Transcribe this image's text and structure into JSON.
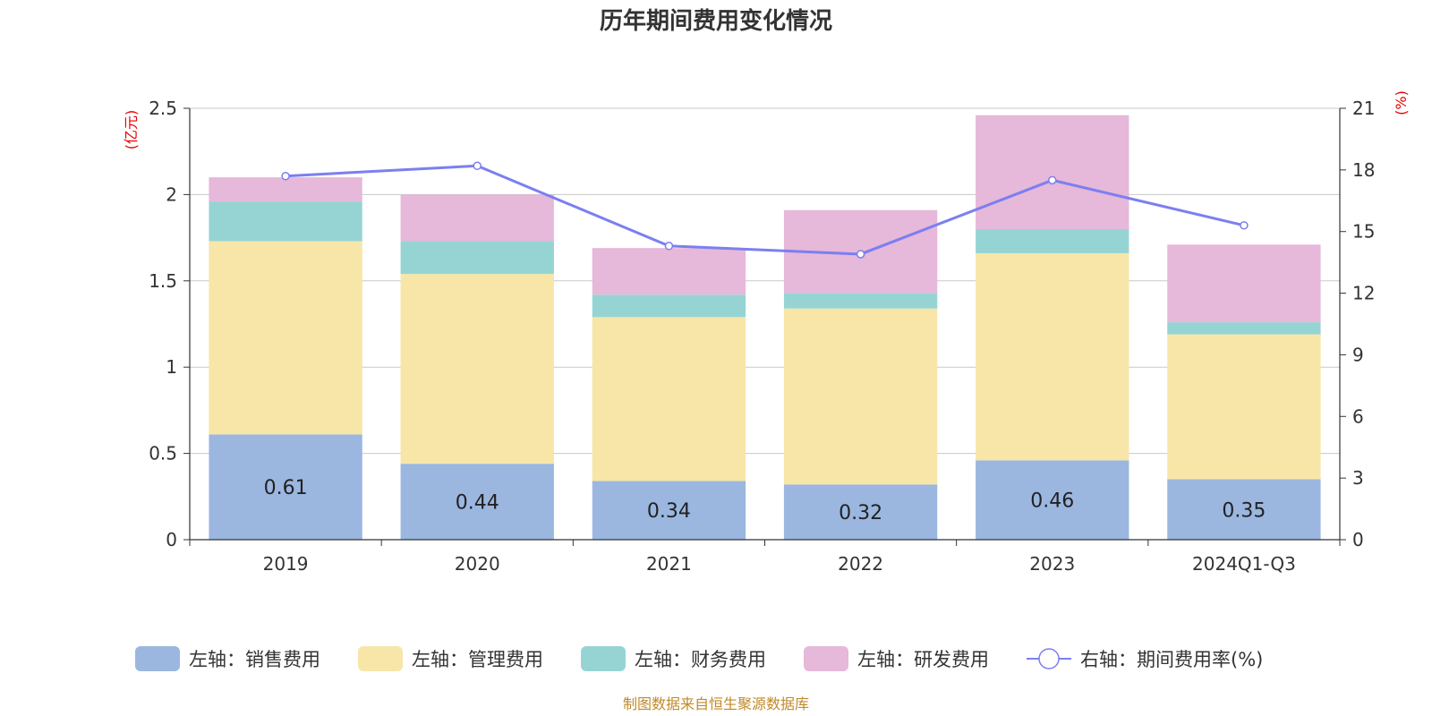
{
  "chart_data": {
    "type": "bar",
    "stacked": true,
    "title": "历年期间费用变化情况",
    "categories": [
      "2019",
      "2020",
      "2021",
      "2022",
      "2023",
      "2024Q1-Q3"
    ],
    "left_axis": {
      "unit": "(亿元)",
      "ylim": [
        0,
        2.5
      ],
      "ticks": [
        "0",
        "0.5",
        "1",
        "1.5",
        "2",
        "2.5"
      ],
      "tick_values": [
        0,
        0.5,
        1,
        1.5,
        2,
        2.5
      ]
    },
    "right_axis": {
      "unit": "(%)",
      "ylim": [
        0,
        21
      ],
      "ticks": [
        "0",
        "3",
        "6",
        "9",
        "12",
        "15",
        "18",
        "21"
      ],
      "tick_values": [
        0,
        3,
        6,
        9,
        12,
        15,
        18,
        21
      ]
    },
    "series": [
      {
        "name": "左轴：销售费用",
        "axis": "left",
        "type": "bar",
        "color": "#9bb7e0",
        "values": [
          0.61,
          0.44,
          0.34,
          0.32,
          0.46,
          0.35
        ],
        "labels": [
          "0.61",
          "0.44",
          "0.34",
          "0.32",
          "0.46",
          "0.35"
        ]
      },
      {
        "name": "左轴：管理费用",
        "axis": "left",
        "type": "bar",
        "color": "#f7e6a8",
        "values": [
          1.12,
          1.1,
          0.95,
          1.02,
          1.2,
          0.84
        ]
      },
      {
        "name": "左轴：财务费用",
        "axis": "left",
        "type": "bar",
        "color": "#96d4d4",
        "values": [
          0.23,
          0.19,
          0.13,
          0.09,
          0.14,
          0.07
        ]
      },
      {
        "name": "左轴：研发费用",
        "axis": "left",
        "type": "bar",
        "color": "#e6b8d9",
        "values": [
          0.14,
          0.27,
          0.27,
          0.48,
          0.66,
          0.45
        ]
      },
      {
        "name": "右轴：期间费用率(%)",
        "axis": "right",
        "type": "line",
        "color": "#7b7ff0",
        "values": [
          17.7,
          18.2,
          14.3,
          13.9,
          17.5,
          15.3
        ]
      }
    ],
    "legend_position": "bottom",
    "grid": true
  },
  "footer": {
    "source": "制图数据来自恒生聚源数据库"
  }
}
